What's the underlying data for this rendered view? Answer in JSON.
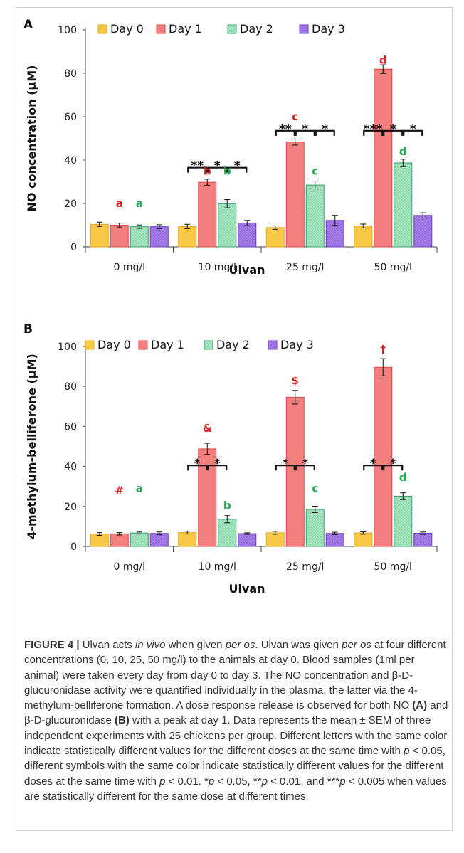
{
  "chart_data": [
    {
      "panel": "A",
      "type": "bar",
      "ylabel": "NO concentration (µM)",
      "xlabel": "Ulvan",
      "ylim": [
        0,
        100
      ],
      "yticks": [
        0,
        20,
        40,
        60,
        80,
        100
      ],
      "categories": [
        "0 mg/l",
        "10 mg/l",
        "25 mg/l",
        "50 mg/l"
      ],
      "series": [
        {
          "name": "Day 0",
          "values": [
            10.4,
            9.4,
            8.9,
            9.6
          ],
          "errors": [
            1.0,
            1.0,
            0.8,
            0.9
          ]
        },
        {
          "name": "Day 1",
          "values": [
            10.0,
            29.8,
            48.3,
            81.9
          ],
          "errors": [
            0.9,
            1.4,
            1.4,
            2.0
          ]
        },
        {
          "name": "Day 2",
          "values": [
            9.3,
            19.9,
            28.5,
            38.7
          ],
          "errors": [
            0.8,
            1.9,
            1.8,
            1.7
          ]
        },
        {
          "name": "Day 3",
          "values": [
            9.3,
            11.0,
            12.2,
            14.5
          ],
          "errors": [
            0.9,
            1.2,
            2.3,
            1.2
          ]
        }
      ],
      "letters": [
        {
          "cat": 0,
          "series": 1,
          "text": "a",
          "color": "#e02020",
          "y": 20
        },
        {
          "cat": 0,
          "series": 2,
          "text": "a",
          "color": "#1faa55",
          "y": 20
        },
        {
          "cat": 1,
          "series": 1,
          "text": "b",
          "color": "#e02020",
          "y": 35
        },
        {
          "cat": 1,
          "series": 2,
          "text": "b",
          "color": "#1faa55",
          "y": 35
        },
        {
          "cat": 2,
          "series": 1,
          "text": "c",
          "color": "#e02020",
          "y": 60
        },
        {
          "cat": 2,
          "series": 2,
          "text": "c",
          "color": "#1faa55",
          "y": 35
        },
        {
          "cat": 3,
          "series": 1,
          "text": "d",
          "color": "#e02020",
          "y": 86
        },
        {
          "cat": 3,
          "series": 2,
          "text": "d",
          "color": "#1faa55",
          "y": 44
        }
      ],
      "brackets": [
        {
          "cat": 1,
          "from": 0,
          "to": 1,
          "label": "**",
          "y": 36.5
        },
        {
          "cat": 1,
          "from": 1,
          "to": 2,
          "label": "*",
          "y": 36.5
        },
        {
          "cat": 1,
          "from": 2,
          "to": 3,
          "label": "*",
          "y": 36.5
        },
        {
          "cat": 2,
          "from": 0,
          "to": 1,
          "label": "**",
          "y": 53.5
        },
        {
          "cat": 2,
          "from": 1,
          "to": 2,
          "label": "*",
          "y": 53.5
        },
        {
          "cat": 2,
          "from": 2,
          "to": 3,
          "label": "*",
          "y": 53.5
        },
        {
          "cat": 3,
          "from": 0,
          "to": 1,
          "label": "***",
          "y": 53.5
        },
        {
          "cat": 3,
          "from": 1,
          "to": 2,
          "label": "*",
          "y": 53.5
        },
        {
          "cat": 3,
          "from": 2,
          "to": 3,
          "label": "*",
          "y": 53.5
        }
      ]
    },
    {
      "panel": "B",
      "type": "bar",
      "ylabel": "4-methylum-belliferone (µM)",
      "xlabel": "Ulvan",
      "ylim": [
        0,
        100
      ],
      "yticks": [
        0,
        20,
        40,
        60,
        80,
        100
      ],
      "categories": [
        "0 mg/l",
        "10 mg/l",
        "25 mg/l",
        "50 mg/l"
      ],
      "series": [
        {
          "name": "Day 0",
          "values": [
            6.2,
            6.9,
            6.8,
            6.7
          ],
          "errors": [
            0.7,
            0.7,
            0.7,
            0.6
          ]
        },
        {
          "name": "Day 1",
          "values": [
            6.3,
            48.8,
            74.6,
            89.6
          ],
          "errors": [
            0.6,
            2.8,
            3.4,
            4.3
          ]
        },
        {
          "name": "Day 2",
          "values": [
            6.7,
            13.6,
            18.5,
            25.1
          ],
          "errors": [
            0.5,
            1.8,
            1.6,
            1.7
          ]
        },
        {
          "name": "Day 3",
          "values": [
            6.5,
            6.4,
            6.5,
            6.6
          ],
          "errors": [
            0.7,
            0.4,
            0.6,
            0.6
          ]
        }
      ],
      "letters": [
        {
          "cat": 0,
          "series": 1,
          "text": "#",
          "color": "#e02020",
          "y": 28
        },
        {
          "cat": 0,
          "series": 2,
          "text": "a",
          "color": "#1faa55",
          "y": 29
        },
        {
          "cat": 1,
          "series": 1,
          "text": "&",
          "color": "#e02020",
          "y": 59
        },
        {
          "cat": 1,
          "series": 2,
          "text": "b",
          "color": "#1faa55",
          "y": 20.5
        },
        {
          "cat": 2,
          "series": 1,
          "text": "$",
          "color": "#e02020",
          "y": 83
        },
        {
          "cat": 2,
          "series": 2,
          "text": "c",
          "color": "#1faa55",
          "y": 29
        },
        {
          "cat": 3,
          "series": 1,
          "text": "†",
          "color": "#e02020",
          "y": 98.5
        },
        {
          "cat": 3,
          "series": 2,
          "text": "d",
          "color": "#1faa55",
          "y": 34.5
        }
      ],
      "brackets": [
        {
          "cat": 1,
          "from": 0,
          "to": 1,
          "label": "*",
          "y": 40.5
        },
        {
          "cat": 1,
          "from": 1,
          "to": 2,
          "label": "*",
          "y": 40.5
        },
        {
          "cat": 2,
          "from": 0,
          "to": 1,
          "label": "*",
          "y": 40.5
        },
        {
          "cat": 2,
          "from": 1,
          "to": 2,
          "label": "*",
          "y": 40.5
        },
        {
          "cat": 3,
          "from": 0,
          "to": 1,
          "label": "*",
          "y": 40.5
        },
        {
          "cat": 3,
          "from": 1,
          "to": 2,
          "label": "*",
          "y": 40.5
        }
      ]
    }
  ],
  "legend": [
    {
      "name": "Day 0",
      "color": "#f9c846",
      "stroke": "#e0a820",
      "pattern": "none"
    },
    {
      "name": "Day 1",
      "color": "#f47f7f",
      "stroke": "#d94a4a",
      "pattern": "none"
    },
    {
      "name": "Day 2",
      "color": "#a8e6c4",
      "stroke": "#3aa06a",
      "pattern": "dots"
    },
    {
      "name": "Day 3",
      "color": "#a77ee8",
      "stroke": "#6a3ec4",
      "pattern": "dots"
    }
  ],
  "caption": {
    "label": "FIGURE 4 |",
    "text_html": " Ulvan acts <i>in vivo</i> when given <i>per os</i>. Ulvan was given <i>per os</i> at four different concentrations (0, 10, 25, 50 mg/l) to the animals at day 0. Blood samples (1ml per animal) were taken every day from day 0 to day 3. The NO concentration and β-D-glucuronidase activity were quantified individually in the plasma, the latter via the 4-methylum-belliferone formation. A dose response release is observed for both NO <b>(A)</b> and β-D-glucuronidase <b>(B)</b> with a peak at day 1. Data represents the mean ± SEM of three independent experiments with 25 chickens per group. Different letters with the same color indicate statistically different values for the different doses at the same time with <i>p</i> &lt; 0.05, different symbols with the same color indicate statistically different values for the different doses at the same time with <i>p</i> &lt; 0.01. *<i>p</i> &lt; 0.05, **<i>p</i> &lt; 0.01, and ***<i>p</i> &lt; 0.005 when values are statistically different for the same dose at different times."
  }
}
